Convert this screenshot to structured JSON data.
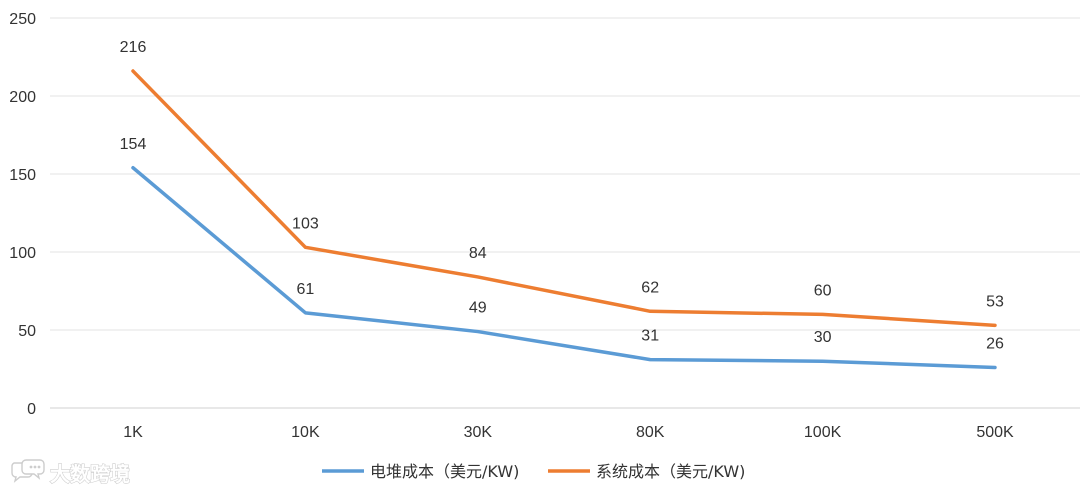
{
  "chart_data": {
    "type": "line",
    "categories": [
      "1K",
      "10K",
      "30K",
      "80K",
      "100K",
      "500K"
    ],
    "series": [
      {
        "name": "电堆成本（美元/KW)",
        "color": "#5b9bd5",
        "values": [
          154,
          61,
          49,
          31,
          30,
          26
        ]
      },
      {
        "name": "系统成本（美元/KW)",
        "color": "#ed7d31",
        "values": [
          216,
          103,
          84,
          62,
          60,
          53
        ]
      }
    ],
    "y_ticks": [
      0,
      50,
      100,
      150,
      200,
      250
    ],
    "ylim": [
      0,
      250
    ],
    "grid": true,
    "legend": "bottom-center",
    "data_labels": true
  },
  "watermark": {
    "text": "大数跨境",
    "icon": "chat-bubbles-icon"
  }
}
